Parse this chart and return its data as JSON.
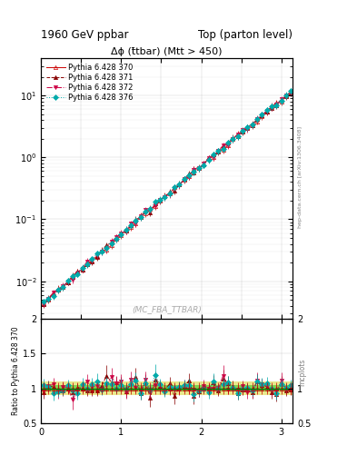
{
  "title_left": "1960 GeV ppbar",
  "title_right": "Top (parton level)",
  "plot_title": "Δϕ (t̄tbar) (Mtt > 450)",
  "watermark": "(MC_FBA_TTBAR)",
  "right_label_main": "hep-data.cern.ch [arXiv:1306.3408]",
  "right_label_ratio": "mcplots",
  "ylabel_ratio": "Ratio to Pythia 6.428 370",
  "xlim": [
    0,
    3.14159
  ],
  "ylim_main": [
    0.0025,
    40
  ],
  "ylim_ratio": [
    0.5,
    2.0
  ],
  "series": [
    {
      "label": "Pythia 6.428 370",
      "color": "#cc0000",
      "linestyle": "-",
      "marker": "^",
      "filled": false
    },
    {
      "label": "Pythia 6.428 371",
      "color": "#880000",
      "linestyle": "--",
      "marker": "^",
      "filled": true
    },
    {
      "label": "Pythia 6.428 372",
      "color": "#cc0044",
      "linestyle": "-.",
      "marker": "v",
      "filled": true
    },
    {
      "label": "Pythia 6.428 376",
      "color": "#00aaaa",
      "linestyle": ":",
      "marker": "D",
      "filled": true
    }
  ],
  "n_points": 52,
  "band_green": "#00bb00",
  "band_yellow": "#cccc00",
  "band_green_alpha": 0.45,
  "band_yellow_alpha": 0.45
}
